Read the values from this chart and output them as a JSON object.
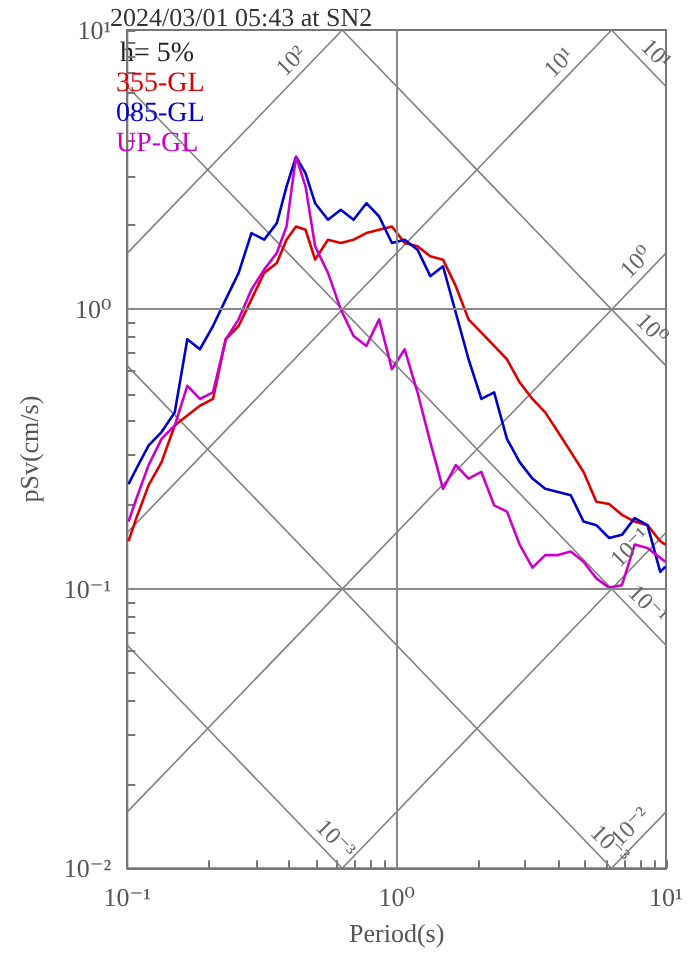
{
  "chart_data": {
    "type": "line",
    "title": "2024/03/01 05:43 at SN2",
    "xlabel": "Period(s)",
    "ylabel": "pSv(cm/s)",
    "log": "xy",
    "grid": true,
    "legend": "top left",
    "marker": "none",
    "line_style": "solid",
    "xlim": [
      0.1,
      10
    ],
    "ylim": [
      0.01,
      10
    ],
    "xticks": [
      {
        "value": 0.1,
        "label": "10⁻¹"
      },
      {
        "value": 0.2,
        "label": null
      },
      {
        "value": 0.3,
        "label": null
      },
      {
        "value": 0.4,
        "label": null
      },
      {
        "value": 0.5,
        "label": null
      },
      {
        "value": 0.6,
        "label": null
      },
      {
        "value": 0.7,
        "label": null
      },
      {
        "value": 0.8,
        "label": null
      },
      {
        "value": 0.9,
        "label": null
      },
      {
        "value": 1,
        "label": "10⁰"
      },
      {
        "value": 2,
        "label": null
      },
      {
        "value": 3,
        "label": null
      },
      {
        "value": 4,
        "label": null
      },
      {
        "value": 5,
        "label": null
      },
      {
        "value": 6,
        "label": null
      },
      {
        "value": 7,
        "label": null
      },
      {
        "value": 8,
        "label": null
      },
      {
        "value": 9,
        "label": null
      },
      {
        "value": 10,
        "label": "10¹"
      }
    ],
    "yticks": [
      {
        "value": 0.01,
        "label": "10⁻²"
      },
      {
        "value": 0.02,
        "label": null
      },
      {
        "value": 0.03,
        "label": null
      },
      {
        "value": 0.04,
        "label": null
      },
      {
        "value": 0.05,
        "label": null
      },
      {
        "value": 0.06,
        "label": null
      },
      {
        "value": 0.07,
        "label": null
      },
      {
        "value": 0.08,
        "label": null
      },
      {
        "value": 0.09,
        "label": null
      },
      {
        "value": 0.1,
        "label": "10⁻¹"
      },
      {
        "value": 0.2,
        "label": null
      },
      {
        "value": 0.3,
        "label": null
      },
      {
        "value": 0.4,
        "label": null
      },
      {
        "value": 0.5,
        "label": null
      },
      {
        "value": 0.6,
        "label": null
      },
      {
        "value": 0.7,
        "label": null
      },
      {
        "value": 0.8,
        "label": null
      },
      {
        "value": 0.9,
        "label": null
      },
      {
        "value": 1,
        "label": "10⁰"
      },
      {
        "value": 2,
        "label": null
      },
      {
        "value": 3,
        "label": null
      },
      {
        "value": 4,
        "label": null
      },
      {
        "value": 5,
        "label": null
      },
      {
        "value": 6,
        "label": null
      },
      {
        "value": 7,
        "label": null
      },
      {
        "value": 8,
        "label": null
      },
      {
        "value": 9,
        "label": null
      },
      {
        "value": 10,
        "label": "10¹"
      }
    ],
    "x": [
      0.101,
      0.108,
      0.12,
      0.134,
      0.15,
      0.167,
      0.186,
      0.208,
      0.232,
      0.259,
      0.289,
      0.322,
      0.359,
      0.39,
      0.423,
      0.459,
      0.498,
      0.556,
      0.62,
      0.692,
      0.772,
      0.861,
      0.96,
      1.071,
      1.195,
      1.333,
      1.486,
      1.658,
      1.849,
      2.063,
      2.301,
      2.567,
      2.862,
      3.193,
      3.561,
      3.973,
      4.431,
      4.943,
      5.513,
      6.15,
      6.861,
      7.65,
      8.535,
      9.52,
      9.95
    ],
    "series": [
      {
        "name": "355-GL",
        "color": "#dd0000",
        "values": [
          0.148,
          0.179,
          0.235,
          0.284,
          0.384,
          0.417,
          0.452,
          0.478,
          0.782,
          0.872,
          1.086,
          1.351,
          1.467,
          1.776,
          1.981,
          1.928,
          1.507,
          1.776,
          1.728,
          1.776,
          1.876,
          1.928,
          1.981,
          1.728,
          1.682,
          1.549,
          1.507,
          1.211,
          0.921,
          0.826,
          0.74,
          0.663,
          0.548,
          0.478,
          0.428,
          0.364,
          0.309,
          0.262,
          0.205,
          0.201,
          0.184,
          0.174,
          0.169,
          0.148,
          0.144
        ]
      },
      {
        "name": "085-GL",
        "color": "#0000cc",
        "values": [
          0.237,
          0.269,
          0.326,
          0.364,
          0.428,
          0.782,
          0.72,
          0.872,
          1.086,
          1.351,
          1.876,
          1.776,
          2.036,
          2.751,
          3.518,
          3.068,
          2.399,
          2.093,
          2.272,
          2.093,
          2.399,
          2.15,
          1.728,
          1.776,
          1.636,
          1.315,
          1.427,
          0.973,
          0.663,
          0.478,
          0.505,
          0.344,
          0.284,
          0.248,
          0.228,
          0.222,
          0.216,
          0.174,
          0.169,
          0.152,
          0.156,
          0.179,
          0.169,
          0.115,
          0.12
        ]
      },
      {
        "name": "UP-GL",
        "color": "#cc00cc",
        "values": [
          0.174,
          0.21,
          0.277,
          0.344,
          0.384,
          0.533,
          0.478,
          0.505,
          0.782,
          0.921,
          1.178,
          1.388,
          1.592,
          1.981,
          3.518,
          2.751,
          1.682,
          1.351,
          1.0,
          0.803,
          0.74,
          0.921,
          0.611,
          0.72,
          0.505,
          0.335,
          0.228,
          0.277,
          0.248,
          0.262,
          0.199,
          0.189,
          0.144,
          0.119,
          0.132,
          0.132,
          0.136,
          0.125,
          0.109,
          0.101,
          0.103,
          0.144,
          0.14,
          0.129,
          0.125
        ]
      },
      {
        "type": "line",
        "color": "#808080",
        "x": [
          0.1,
          0.628
        ],
        "values": [
          1.59,
          10
        ]
      },
      {
        "type": "line",
        "color": "#808080",
        "x": [
          0.1,
          6.28
        ],
        "values": [
          0.159,
          10
        ]
      },
      {
        "type": "line",
        "color": "#808080",
        "x": [
          0.1,
          10
        ],
        "values": [
          0.0159,
          1.59
        ]
      },
      {
        "type": "line",
        "color": "#808080",
        "x": [
          0.628,
          10
        ],
        "values": [
          0.01,
          0.159
        ]
      },
      {
        "type": "line",
        "color": "#808080",
        "x": [
          6.28,
          10
        ],
        "values": [
          0.01,
          0.0159
        ]
      },
      {
        "type": "line",
        "color": "#808080",
        "x": [
          6.28,
          10
        ],
        "values": [
          10,
          6.28
        ]
      },
      {
        "type": "line",
        "color": "#808080",
        "x": [
          0.628,
          10
        ],
        "values": [
          10,
          0.628
        ]
      },
      {
        "type": "line",
        "color": "#808080",
        "x": [
          0.1,
          10
        ],
        "values": [
          6.28,
          0.0628
        ]
      },
      {
        "type": "line",
        "color": "#808080",
        "x": [
          0.1,
          6.28
        ],
        "values": [
          0.628,
          0.01
        ]
      },
      {
        "type": "line",
        "color": "#808080",
        "x": [
          0.1,
          0.628
        ],
        "values": [
          0.0628,
          0.01
        ]
      }
    ],
    "annotations": [
      "h= 5%",
      {
        "text": "10²",
        "x": 0.445,
        "y": 7.08
      },
      {
        "text": "10¹",
        "x": 4.4,
        "y": 7.0
      },
      {
        "text": "10¹",
        "x": 8.36,
        "y": 7.52
      },
      {
        "text": "10⁰",
        "x": 8.5,
        "y": 1.35
      },
      {
        "text": "10⁰",
        "x": 8.07,
        "y": 0.778
      },
      {
        "text": "10⁻¹",
        "x": 8.07,
        "y": 0.1285
      },
      {
        "text": "10⁻¹",
        "x": 7.8,
        "y": 0.0805
      },
      {
        "text": "10⁻³",
        "x": 0.54,
        "y": 0.01165
      },
      {
        "text": "10⁻³",
        "x": 5.64,
        "y": 0.01114
      },
      {
        "text": "10⁻²",
        "x": 8.07,
        "y": 0.01285
      }
    ]
  }
}
